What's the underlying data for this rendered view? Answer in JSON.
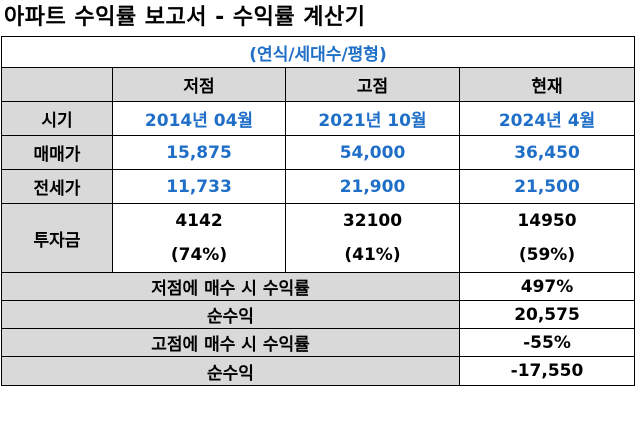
{
  "title": "아파트 수익률 보고서 - 수익률 계산기",
  "subtitle": "(연식/세대수/평형)",
  "columns": [
    "저점",
    "고점",
    "현재"
  ],
  "rows": [
    {
      "label": "시기",
      "values": [
        "2014년 04월",
        "2021년 10월",
        "2024년 4월"
      ]
    },
    {
      "label": "매매가",
      "values": [
        "15,875",
        "54,000",
        "36,450"
      ]
    },
    {
      "label": "전세가",
      "values": [
        "11,733",
        "21,900",
        "21,500"
      ]
    }
  ],
  "investment": {
    "label": "투자금",
    "values": [
      "4142",
      "32100",
      "14950"
    ],
    "percents": [
      "(74%)",
      "(41%)",
      "(59%)"
    ]
  },
  "summary": [
    {
      "label": "저점에 매수 시 수익률",
      "value": "497%"
    },
    {
      "label": "순수익",
      "value": "20,575"
    },
    {
      "label": "고점에 매수 시 수익률",
      "value": "-55%"
    },
    {
      "label": "순수익",
      "value": "-17,550"
    }
  ]
}
